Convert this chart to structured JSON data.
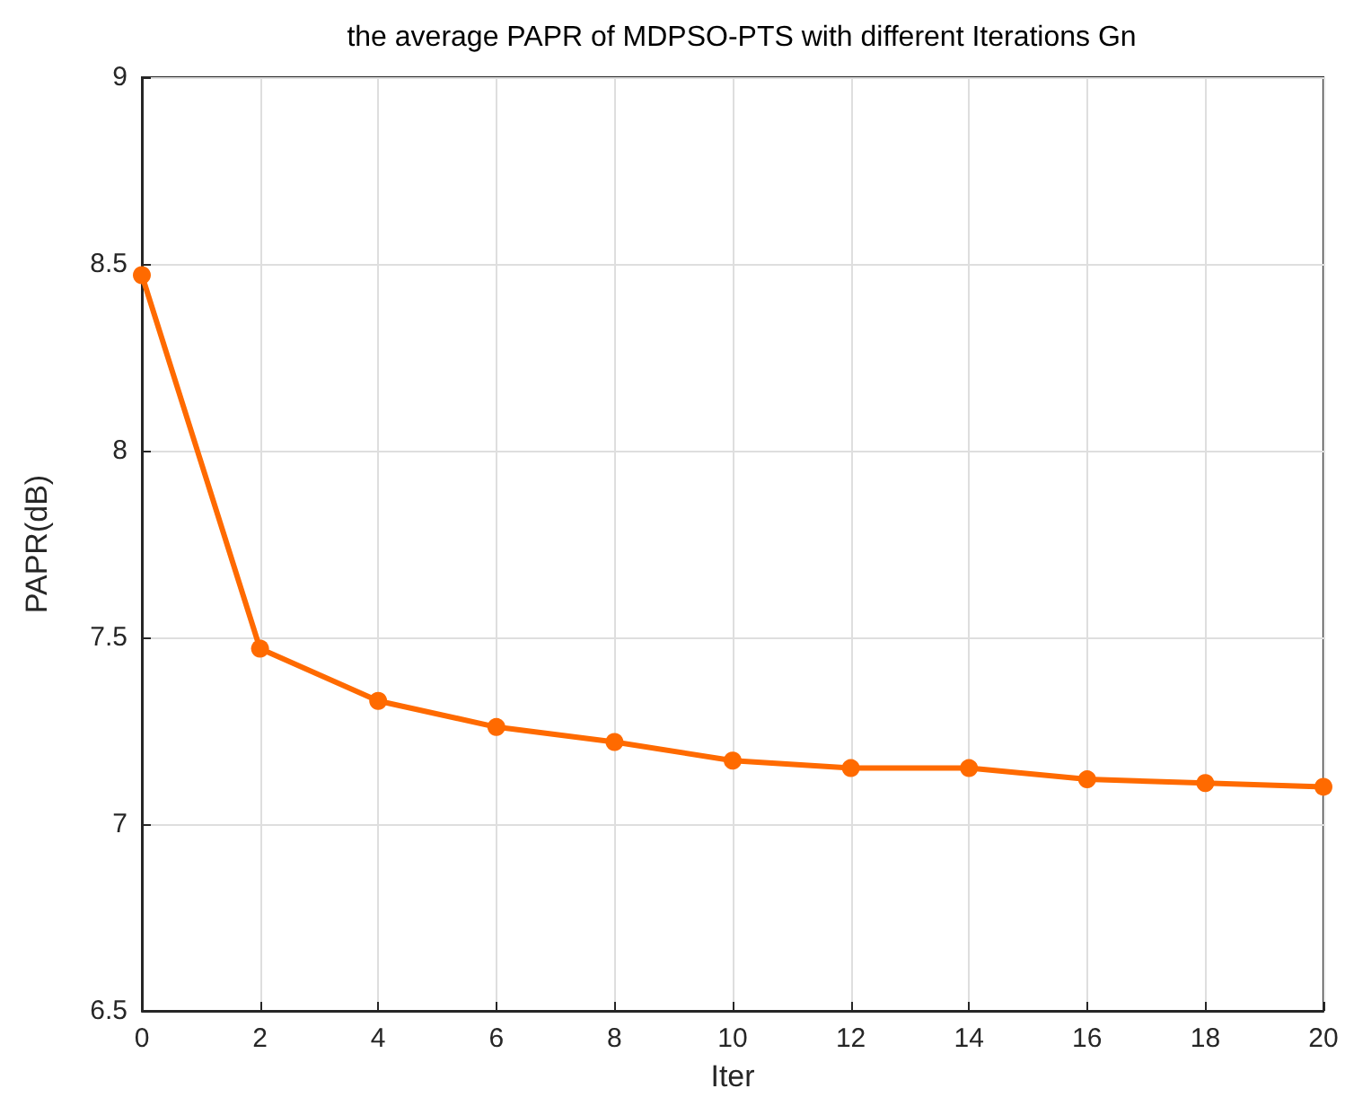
{
  "chart_data": {
    "type": "line",
    "title": "the average PAPR of MDPSO-PTS with different Iterations Gn",
    "xlabel": "Iter",
    "ylabel": "PAPR(dB)",
    "x": [
      0,
      2,
      4,
      6,
      8,
      10,
      12,
      14,
      16,
      18,
      20
    ],
    "series": [
      {
        "color": "#ff6a00",
        "values": [
          8.47,
          7.47,
          7.33,
          7.26,
          7.22,
          7.17,
          7.15,
          7.15,
          7.12,
          7.11,
          7.1
        ]
      }
    ],
    "xlim": [
      0,
      20
    ],
    "xticks": [
      0,
      2,
      4,
      6,
      8,
      10,
      12,
      14,
      16,
      18,
      20
    ],
    "ylim": [
      6.5,
      9
    ],
    "yticks": [
      6.5,
      7,
      7.5,
      8,
      8.5,
      9
    ],
    "grid": true,
    "marker": "circle",
    "line_style": "solid"
  }
}
